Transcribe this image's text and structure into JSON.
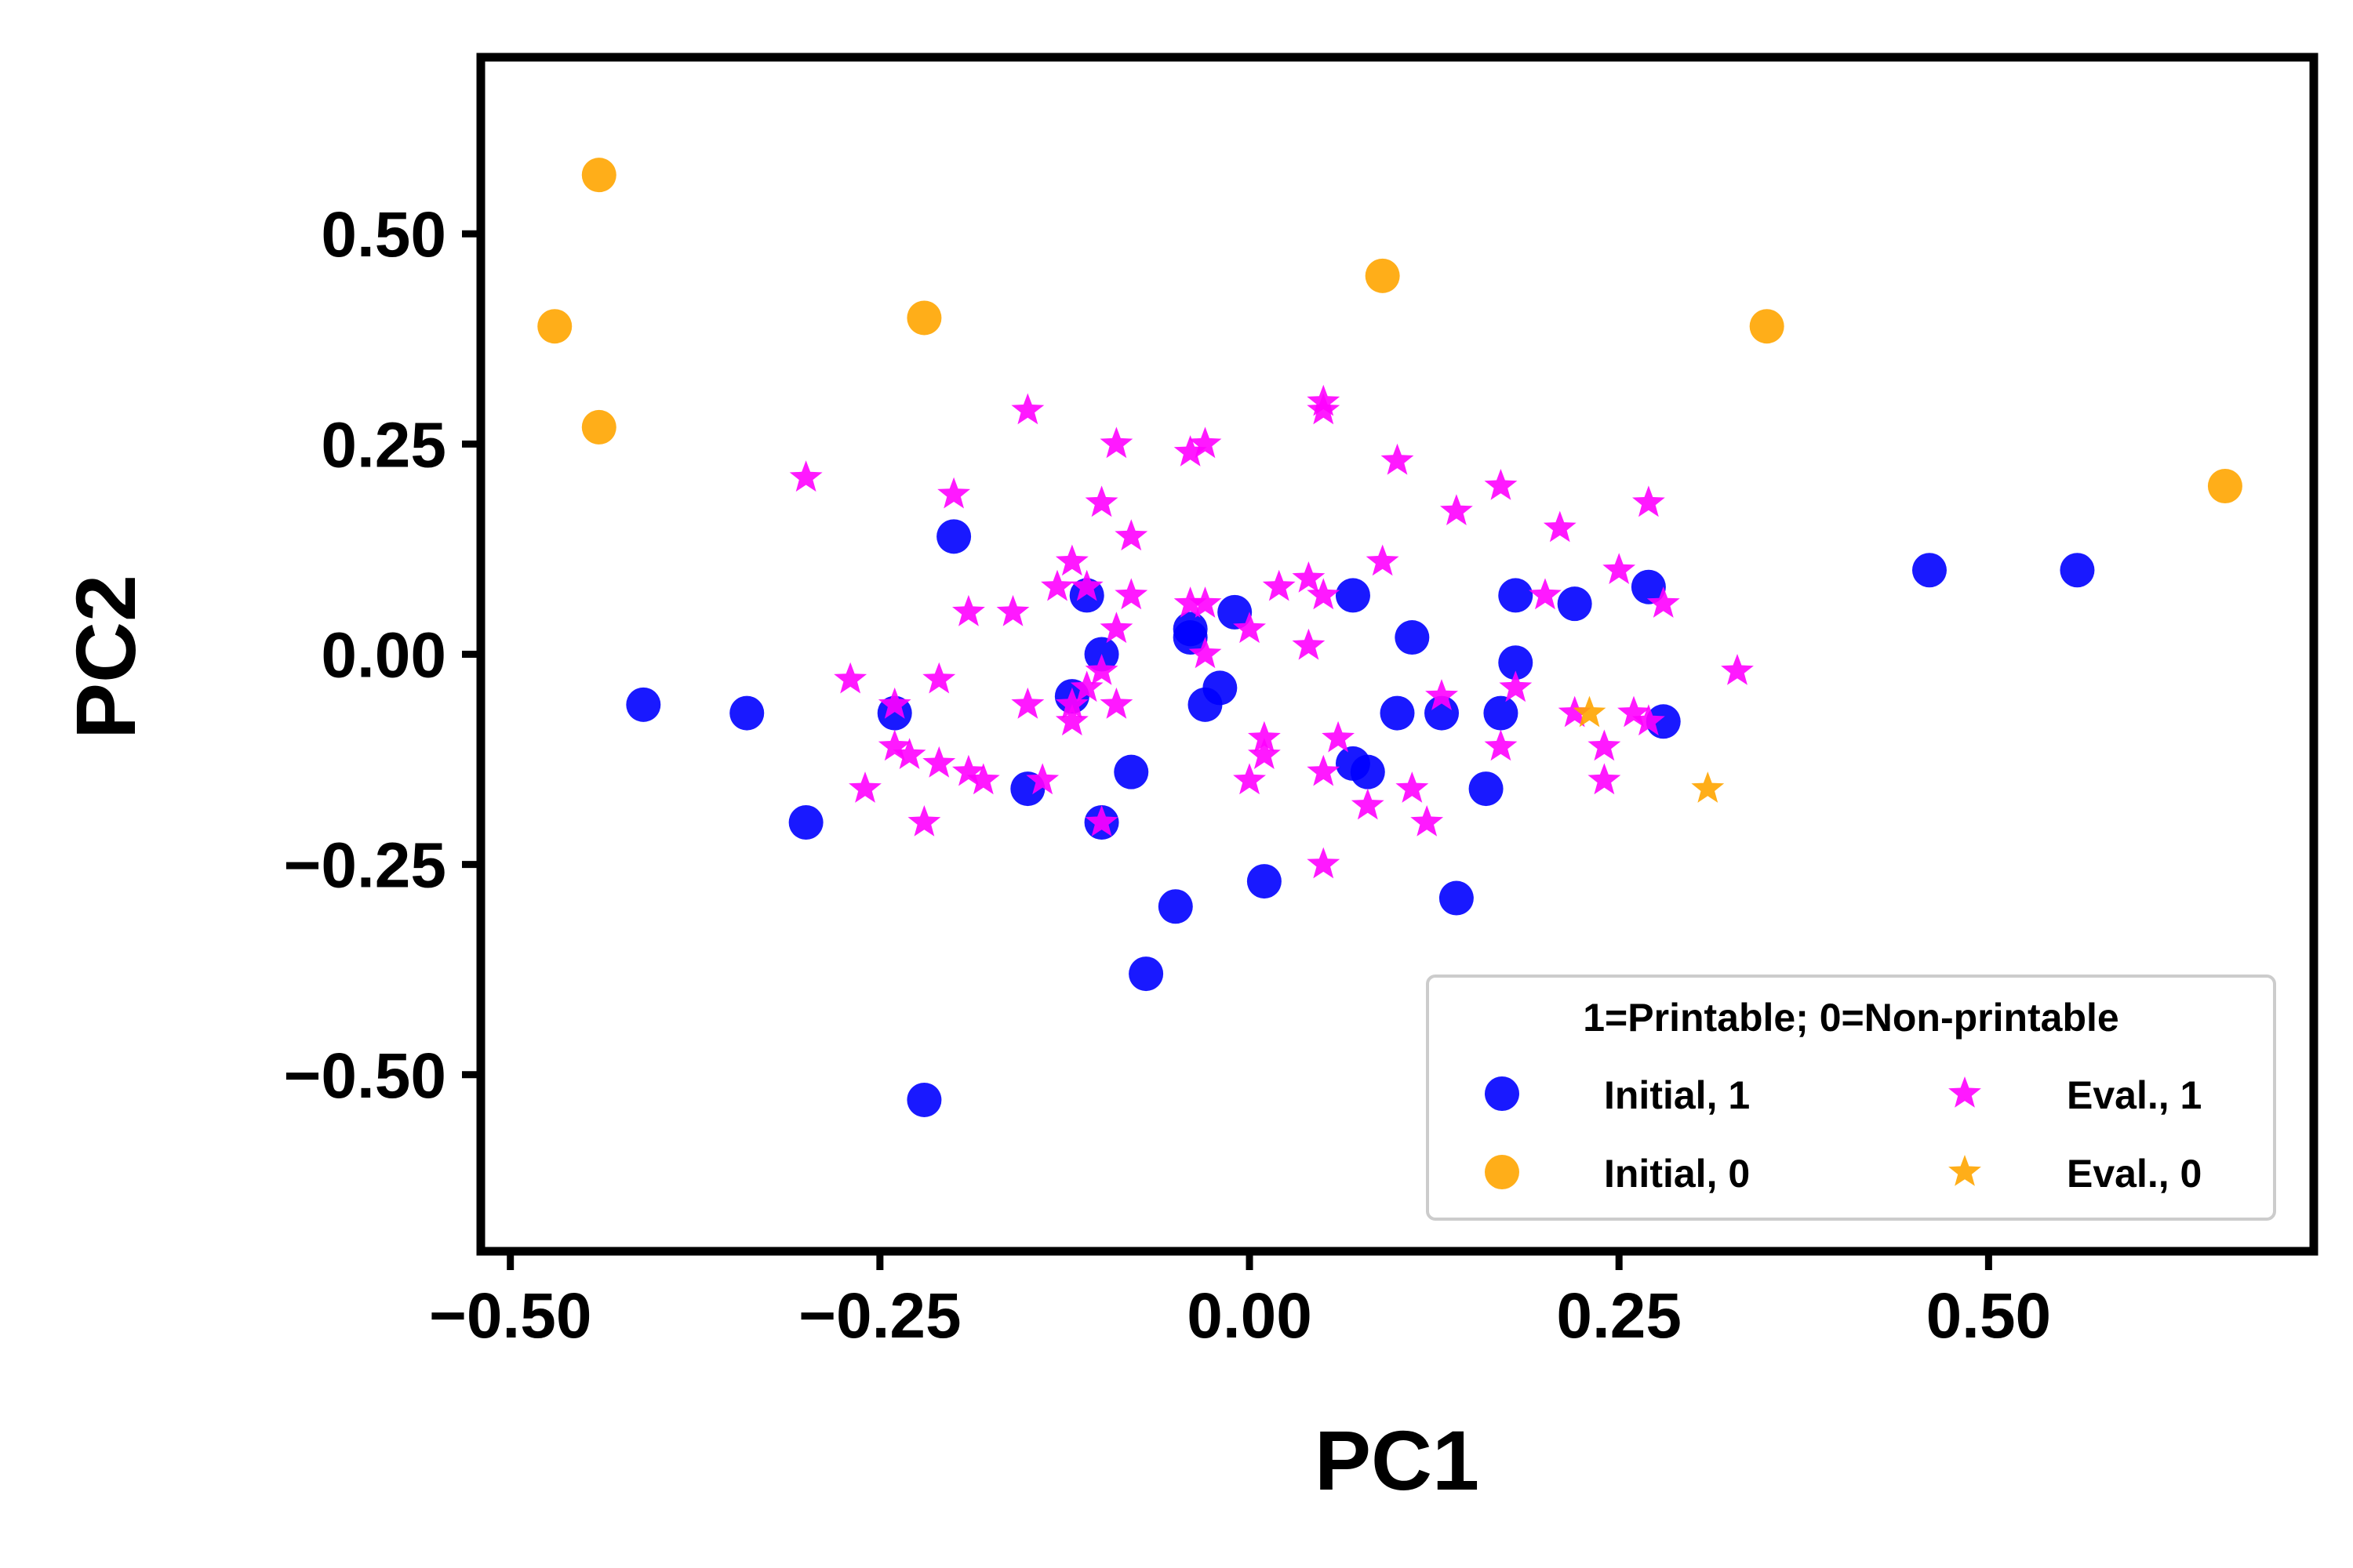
{
  "chart_data": {
    "type": "scatter",
    "title": "",
    "xlabel": "PC1",
    "ylabel": "PC2",
    "xlim": [
      -0.52,
      0.72
    ],
    "ylim": [
      -0.71,
      0.71
    ],
    "xticks": [
      -0.5,
      -0.25,
      0.0,
      0.25,
      0.5
    ],
    "yticks": [
      -0.5,
      -0.25,
      0.0,
      0.25,
      0.5
    ],
    "xtick_labels": [
      "−0.50",
      "−0.25",
      "0.00",
      "0.25",
      "0.50"
    ],
    "ytick_labels": [
      "−0.50",
      "−0.25",
      "0.00",
      "0.25",
      "0.50"
    ],
    "grid": false,
    "legend": {
      "title": "1=Printable; 0=Non-printable",
      "placement": "lower-right",
      "columns": 2
    },
    "series": [
      {
        "name": "Initial, 1",
        "marker": "circle",
        "color": "#0000ff",
        "points": [
          [
            -0.41,
            -0.06
          ],
          [
            -0.34,
            -0.07
          ],
          [
            -0.3,
            -0.2
          ],
          [
            -0.24,
            -0.07
          ],
          [
            -0.22,
            -0.53
          ],
          [
            -0.2,
            0.14
          ],
          [
            -0.15,
            -0.16
          ],
          [
            -0.12,
            -0.05
          ],
          [
            -0.11,
            0.07
          ],
          [
            -0.1,
            0.0
          ],
          [
            -0.1,
            -0.2
          ],
          [
            -0.08,
            -0.14
          ],
          [
            -0.07,
            -0.38
          ],
          [
            -0.05,
            -0.3
          ],
          [
            -0.04,
            0.02
          ],
          [
            -0.04,
            0.03
          ],
          [
            -0.03,
            -0.06
          ],
          [
            -0.02,
            -0.04
          ],
          [
            -0.01,
            0.05
          ],
          [
            0.01,
            -0.27
          ],
          [
            0.07,
            -0.13
          ],
          [
            0.07,
            0.07
          ],
          [
            0.08,
            -0.14
          ],
          [
            0.1,
            -0.07
          ],
          [
            0.11,
            0.02
          ],
          [
            0.13,
            -0.07
          ],
          [
            0.14,
            -0.29
          ],
          [
            0.16,
            -0.16
          ],
          [
            0.17,
            -0.07
          ],
          [
            0.18,
            -0.01
          ],
          [
            0.18,
            0.07
          ],
          [
            0.22,
            0.06
          ],
          [
            0.27,
            0.08
          ],
          [
            0.28,
            -0.08
          ],
          [
            0.46,
            0.1
          ],
          [
            0.56,
            0.1
          ]
        ]
      },
      {
        "name": "Initial, 0",
        "marker": "circle",
        "color": "#ffa500",
        "points": [
          [
            -0.47,
            0.39
          ],
          [
            -0.44,
            0.57
          ],
          [
            -0.44,
            0.27
          ],
          [
            -0.22,
            0.4
          ],
          [
            0.09,
            0.45
          ],
          [
            0.35,
            0.39
          ],
          [
            0.66,
            0.2
          ]
        ]
      },
      {
        "name": "Eval., 1",
        "marker": "star",
        "color": "#ff00ff",
        "points": [
          [
            -0.3,
            0.21
          ],
          [
            -0.27,
            -0.03
          ],
          [
            -0.26,
            -0.16
          ],
          [
            -0.24,
            -0.06
          ],
          [
            -0.24,
            -0.11
          ],
          [
            -0.23,
            -0.12
          ],
          [
            -0.22,
            -0.2
          ],
          [
            -0.21,
            -0.03
          ],
          [
            -0.21,
            -0.13
          ],
          [
            -0.2,
            0.19
          ],
          [
            -0.19,
            0.05
          ],
          [
            -0.19,
            -0.14
          ],
          [
            -0.18,
            -0.15
          ],
          [
            -0.16,
            0.05
          ],
          [
            -0.15,
            0.29
          ],
          [
            -0.15,
            -0.06
          ],
          [
            -0.14,
            -0.15
          ],
          [
            -0.13,
            0.08
          ],
          [
            -0.12,
            0.11
          ],
          [
            -0.12,
            -0.08
          ],
          [
            -0.12,
            -0.06
          ],
          [
            -0.11,
            0.08
          ],
          [
            -0.11,
            -0.04
          ],
          [
            -0.1,
            0.18
          ],
          [
            -0.1,
            -0.2
          ],
          [
            -0.1,
            -0.02
          ],
          [
            -0.09,
            0.25
          ],
          [
            -0.09,
            0.03
          ],
          [
            -0.09,
            -0.06
          ],
          [
            -0.08,
            0.14
          ],
          [
            -0.08,
            0.07
          ],
          [
            -0.04,
            0.24
          ],
          [
            -0.03,
            0.25
          ],
          [
            -0.04,
            0.06
          ],
          [
            -0.03,
            0.06
          ],
          [
            -0.03,
            0.0
          ],
          [
            0.0,
            0.03
          ],
          [
            0.0,
            -0.15
          ],
          [
            0.01,
            -0.1
          ],
          [
            0.01,
            -0.12
          ],
          [
            0.02,
            0.08
          ],
          [
            0.04,
            0.09
          ],
          [
            0.04,
            0.01
          ],
          [
            0.05,
            0.3
          ],
          [
            0.05,
            0.29
          ],
          [
            0.05,
            0.07
          ],
          [
            0.05,
            -0.14
          ],
          [
            0.05,
            -0.25
          ],
          [
            0.06,
            -0.1
          ],
          [
            0.08,
            -0.18
          ],
          [
            0.09,
            0.11
          ],
          [
            0.1,
            0.23
          ],
          [
            0.11,
            -0.16
          ],
          [
            0.12,
            -0.2
          ],
          [
            0.13,
            -0.05
          ],
          [
            0.14,
            0.17
          ],
          [
            0.17,
            0.2
          ],
          [
            0.17,
            -0.11
          ],
          [
            0.18,
            -0.04
          ],
          [
            0.2,
            0.07
          ],
          [
            0.21,
            0.15
          ],
          [
            0.22,
            -0.07
          ],
          [
            0.24,
            -0.11
          ],
          [
            0.24,
            -0.15
          ],
          [
            0.25,
            0.1
          ],
          [
            0.26,
            -0.07
          ],
          [
            0.27,
            0.18
          ],
          [
            0.27,
            -0.08
          ],
          [
            0.28,
            0.06
          ],
          [
            0.33,
            -0.02
          ]
        ]
      },
      {
        "name": "Eval., 0",
        "marker": "star",
        "color": "#ffa500",
        "points": [
          [
            0.23,
            -0.07
          ],
          [
            0.31,
            -0.16
          ]
        ]
      }
    ]
  }
}
